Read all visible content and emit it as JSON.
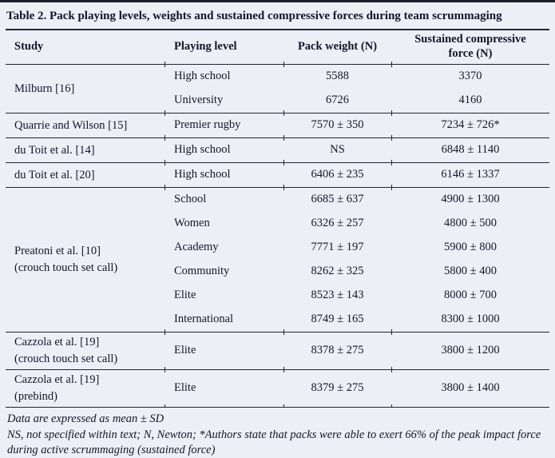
{
  "page": {
    "background_color": "#edeff7",
    "text_color": "#14142a",
    "line_color": "#222236"
  },
  "table": {
    "title": "Table 2. Pack playing levels, weights and sustained compressive forces during team scrummaging",
    "columns": [
      "Study",
      "Playing level",
      "Pack weight (N)",
      "Sustained compressive force (N)"
    ],
    "groups": [
      {
        "study": [
          "Milburn [16]"
        ],
        "rows": [
          [
            "High school",
            "5588",
            "3370"
          ],
          [
            "University",
            "6726",
            "4160"
          ]
        ]
      },
      {
        "study": [
          "Quarrie and Wilson [15]"
        ],
        "rows": [
          [
            "Premier rugby",
            "7570 ± 350",
            "7234 ± 726*"
          ]
        ]
      },
      {
        "study": [
          "du Toit et al. [14]"
        ],
        "rows": [
          [
            "High school",
            "NS",
            "6848 ± 1140"
          ]
        ]
      },
      {
        "study": [
          "du Toit et al. [20]"
        ],
        "rows": [
          [
            "High school",
            "6406 ± 235",
            "6146 ± 1337"
          ]
        ]
      },
      {
        "study": [
          "Preatoni et al. [10]",
          "(crouch touch set call)"
        ],
        "rows": [
          [
            "School",
            "6685 ± 637",
            "4900 ± 1300"
          ],
          [
            "Women",
            "6326 ± 257",
            "4800 ± 500"
          ],
          [
            "Academy",
            "7771 ± 197",
            "5900 ± 800"
          ],
          [
            "Community",
            "8262 ± 325",
            "5800 ± 400"
          ],
          [
            "Elite",
            "8523 ± 143",
            "8000 ± 700"
          ],
          [
            "International",
            "8749 ± 165",
            "8300 ± 1000"
          ]
        ]
      },
      {
        "study": [
          "Cazzola et al. [19]",
          "(crouch touch set call)"
        ],
        "rows": [
          [
            "Elite",
            "8378 ± 275",
            "3800 ± 1200"
          ]
        ]
      },
      {
        "study": [
          "Cazzola et al. [19]",
          "(prebind)"
        ],
        "rows": [
          [
            "Elite",
            "8379 ± 275",
            "3800 ± 1400"
          ]
        ]
      }
    ],
    "footnotes": [
      "Data are expressed as mean ± SD",
      "NS, not specified within text; N, Newton; *Authors state that packs were able to exert 66% of the peak impact force during active scrummaging (sustained force)"
    ]
  }
}
